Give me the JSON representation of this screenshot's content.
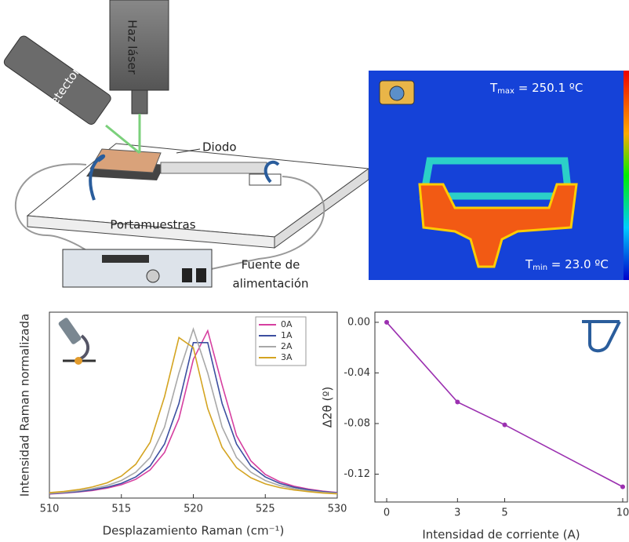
{
  "diagram": {
    "laser": "Haz láser",
    "detector": "Detector",
    "diode": "Diodo",
    "holder": "Portamuestras",
    "source": [
      "Fuente de",
      "alimentación"
    ]
  },
  "thermal": {
    "tmax": {
      "symbol": "T",
      "subscript": "max",
      "text": " = 250.1 ºC"
    },
    "tmin": {
      "symbol": "T",
      "subscript": "min",
      "text": " = 23.0 ºC"
    }
  },
  "chart_data": [
    {
      "type": "line",
      "xlabel": "Desplazamiento Raman (cm⁻¹)",
      "ylabel": "Intensidad Raman normalizada",
      "x": [
        510,
        511,
        512,
        513,
        514,
        515,
        516,
        517,
        518,
        519,
        520,
        521,
        522,
        523,
        524,
        525,
        526,
        527,
        528,
        529,
        530
      ],
      "xlim": [
        510,
        530
      ],
      "xticks": [
        510,
        515,
        520,
        525,
        530
      ],
      "ylim": [
        0,
        1.1
      ],
      "legend": "upper right",
      "series": [
        {
          "name": "0A",
          "color": "#d63fa0",
          "values": [
            0.024,
            0.029,
            0.036,
            0.045,
            0.059,
            0.079,
            0.111,
            0.167,
            0.27,
            0.47,
            0.82,
            0.99,
            0.67,
            0.37,
            0.22,
            0.14,
            0.097,
            0.07,
            0.053,
            0.041,
            0.033
          ]
        },
        {
          "name": "1A",
          "color": "#3c4fa0",
          "values": [
            0.026,
            0.031,
            0.038,
            0.049,
            0.064,
            0.087,
            0.125,
            0.19,
            0.32,
            0.56,
            0.92,
            0.92,
            0.56,
            0.32,
            0.19,
            0.125,
            0.087,
            0.064,
            0.049,
            0.038,
            0.031
          ]
        },
        {
          "name": "2A",
          "color": "#a8a8a8",
          "values": [
            0.028,
            0.034,
            0.043,
            0.056,
            0.074,
            0.104,
            0.153,
            0.24,
            0.42,
            0.74,
            1,
            0.74,
            0.42,
            0.24,
            0.153,
            0.104,
            0.074,
            0.056,
            0.043,
            0.034,
            0.028
          ]
        },
        {
          "name": "3A",
          "color": "#d4a421",
          "values": [
            0.032,
            0.039,
            0.05,
            0.066,
            0.09,
            0.13,
            0.2,
            0.33,
            0.6,
            0.95,
            0.89,
            0.53,
            0.3,
            0.18,
            0.12,
            0.084,
            0.062,
            0.048,
            0.038,
            0.03,
            0.025
          ]
        }
      ]
    },
    {
      "type": "line",
      "xlabel": "Intensidad de corriente (A)",
      "ylabel": "Δ2θ (º)",
      "x": [
        0,
        3,
        5,
        10
      ],
      "xlim": [
        -0.5,
        10.2
      ],
      "xticks": [
        0,
        3,
        5,
        10
      ],
      "ylim": [
        -0.142,
        0.008
      ],
      "yticks": [
        {
          "value": 0,
          "label": "0.00"
        },
        -0.04,
        -0.08,
        -0.12
      ],
      "markers": true,
      "series": [
        {
          "color": "#9b30b0",
          "values": [
            0,
            -0.063,
            -0.081,
            -0.13
          ]
        }
      ]
    }
  ]
}
